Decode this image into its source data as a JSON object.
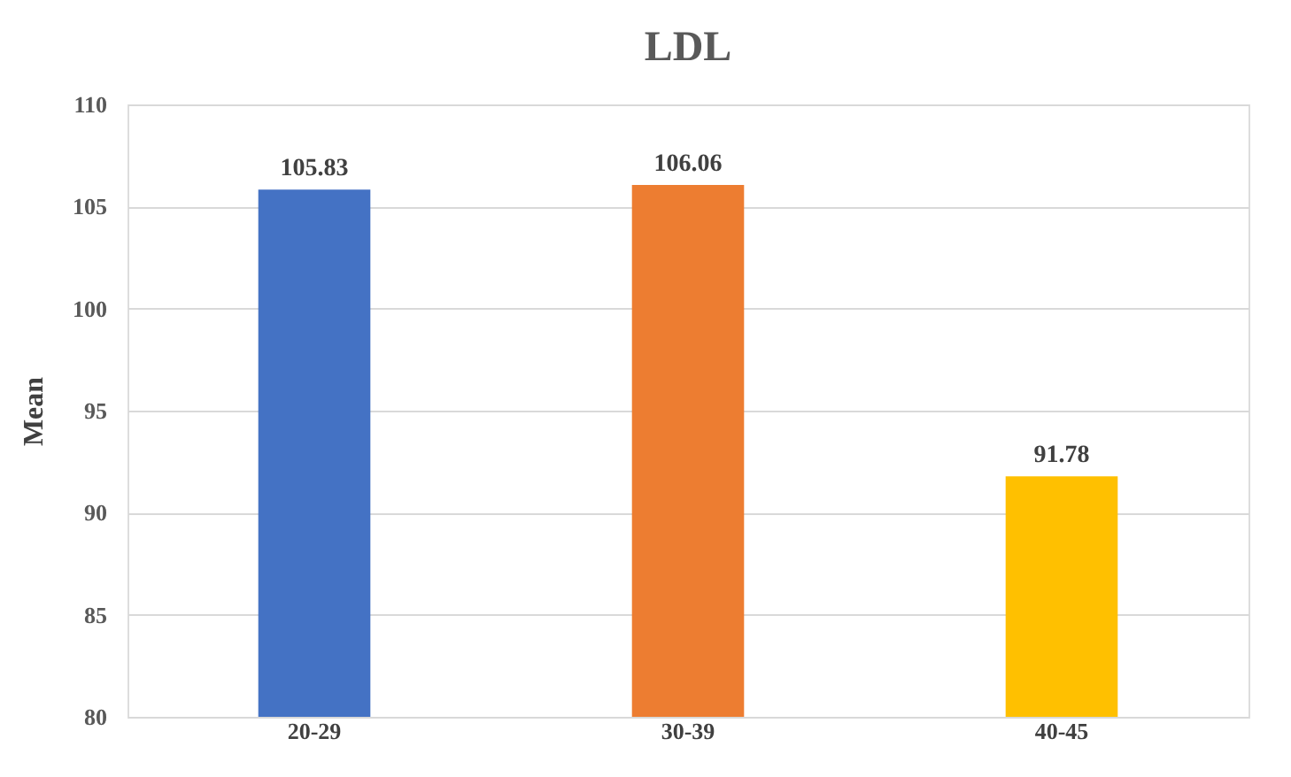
{
  "chart_data": {
    "type": "bar",
    "title": "LDL",
    "ylabel": "Mean",
    "categories": [
      "20-29",
      "30-39",
      "40-45"
    ],
    "values": [
      105.83,
      106.06,
      91.78
    ],
    "colors": [
      "#4472c4",
      "#ed7d31",
      "#ffc000"
    ],
    "ylim": [
      80,
      110
    ],
    "yticks": [
      80,
      85,
      90,
      95,
      100,
      105,
      110
    ],
    "grid": "y",
    "data_labels": true
  }
}
